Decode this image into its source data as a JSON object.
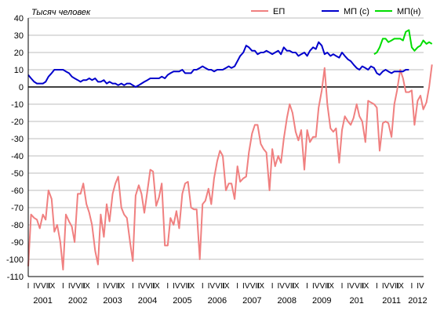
{
  "chart_data": {
    "type": "line",
    "units_label": "Тысяч человек",
    "ylim": [
      -110,
      40
    ],
    "y_ticks": [
      40,
      30,
      20,
      10,
      0,
      -10,
      -20,
      -30,
      -40,
      -50,
      -60,
      -70,
      -80,
      -90,
      -100,
      -110
    ],
    "x_range": [
      2001.0,
      2012.34
    ],
    "quarter_labels": [
      "I",
      "IV",
      "VII",
      "IX"
    ],
    "year_labels": [
      "2001",
      "2002",
      "2003",
      "2004",
      "2005",
      "2006",
      "2007",
      "2008",
      "2009",
      "201",
      "2011",
      "2012"
    ],
    "last_year_quarter_labels": [
      "I",
      "IV",
      "VII"
    ],
    "grid": true,
    "legend_position": "top-right",
    "series": [
      {
        "name": "ЕП",
        "color": "#f08080",
        "points": [
          [
            2001.0,
            -104
          ],
          [
            2001.08,
            -74
          ],
          [
            2001.17,
            -76
          ],
          [
            2001.25,
            -77
          ],
          [
            2001.33,
            -82
          ],
          [
            2001.42,
            -74
          ],
          [
            2001.5,
            -77
          ],
          [
            2001.58,
            -60
          ],
          [
            2001.67,
            -65
          ],
          [
            2001.75,
            -84
          ],
          [
            2001.83,
            -80
          ],
          [
            2001.92,
            -90
          ],
          [
            2002.0,
            -106
          ],
          [
            2002.08,
            -74
          ],
          [
            2002.17,
            -78
          ],
          [
            2002.25,
            -81
          ],
          [
            2002.33,
            -90
          ],
          [
            2002.42,
            -62
          ],
          [
            2002.5,
            -62
          ],
          [
            2002.58,
            -56
          ],
          [
            2002.67,
            -68
          ],
          [
            2002.75,
            -73
          ],
          [
            2002.83,
            -80
          ],
          [
            2002.92,
            -95
          ],
          [
            2003.0,
            -103
          ],
          [
            2003.08,
            -74
          ],
          [
            2003.17,
            -87
          ],
          [
            2003.25,
            -68
          ],
          [
            2003.33,
            -78
          ],
          [
            2003.42,
            -62
          ],
          [
            2003.5,
            -56
          ],
          [
            2003.58,
            -52
          ],
          [
            2003.67,
            -70
          ],
          [
            2003.75,
            -74
          ],
          [
            2003.83,
            -76
          ],
          [
            2003.92,
            -90
          ],
          [
            2004.0,
            -101
          ],
          [
            2004.08,
            -63
          ],
          [
            2004.17,
            -57
          ],
          [
            2004.25,
            -62
          ],
          [
            2004.33,
            -73
          ],
          [
            2004.42,
            -60
          ],
          [
            2004.5,
            -48
          ],
          [
            2004.58,
            -49
          ],
          [
            2004.67,
            -69
          ],
          [
            2004.75,
            -64
          ],
          [
            2004.83,
            -56
          ],
          [
            2004.92,
            -92
          ],
          [
            2005.0,
            -92
          ],
          [
            2005.08,
            -76
          ],
          [
            2005.17,
            -80
          ],
          [
            2005.25,
            -72
          ],
          [
            2005.33,
            -82
          ],
          [
            2005.42,
            -62
          ],
          [
            2005.5,
            -56
          ],
          [
            2005.58,
            -55
          ],
          [
            2005.67,
            -70
          ],
          [
            2005.75,
            -71
          ],
          [
            2005.83,
            -71
          ],
          [
            2005.92,
            -100
          ],
          [
            2006.0,
            -68
          ],
          [
            2006.08,
            -66
          ],
          [
            2006.17,
            -59
          ],
          [
            2006.25,
            -68
          ],
          [
            2006.33,
            -53
          ],
          [
            2006.42,
            -43
          ],
          [
            2006.5,
            -37
          ],
          [
            2006.58,
            -40
          ],
          [
            2006.67,
            -60
          ],
          [
            2006.75,
            -56
          ],
          [
            2006.83,
            -56
          ],
          [
            2006.92,
            -65
          ],
          [
            2007.0,
            -46
          ],
          [
            2007.08,
            -55
          ],
          [
            2007.17,
            -53
          ],
          [
            2007.25,
            -52
          ],
          [
            2007.33,
            -38
          ],
          [
            2007.42,
            -27
          ],
          [
            2007.5,
            -22
          ],
          [
            2007.58,
            -22
          ],
          [
            2007.67,
            -33
          ],
          [
            2007.75,
            -36
          ],
          [
            2007.83,
            -38
          ],
          [
            2007.92,
            -60
          ],
          [
            2008.0,
            -36
          ],
          [
            2008.08,
            -46
          ],
          [
            2008.17,
            -40
          ],
          [
            2008.25,
            -44
          ],
          [
            2008.33,
            -30
          ],
          [
            2008.42,
            -18
          ],
          [
            2008.5,
            -10
          ],
          [
            2008.58,
            -15
          ],
          [
            2008.67,
            -26
          ],
          [
            2008.75,
            -31
          ],
          [
            2008.83,
            -25
          ],
          [
            2008.92,
            -48
          ],
          [
            2009.0,
            -25
          ],
          [
            2009.08,
            -32
          ],
          [
            2009.17,
            -29
          ],
          [
            2009.25,
            -29
          ],
          [
            2009.33,
            -12
          ],
          [
            2009.42,
            -2
          ],
          [
            2009.5,
            11
          ],
          [
            2009.58,
            -10
          ],
          [
            2009.67,
            -24
          ],
          [
            2009.75,
            -26
          ],
          [
            2009.83,
            -24
          ],
          [
            2009.92,
            -44
          ],
          [
            2010.0,
            -25
          ],
          [
            2010.08,
            -17
          ],
          [
            2010.17,
            -20
          ],
          [
            2010.25,
            -22
          ],
          [
            2010.33,
            -18
          ],
          [
            2010.42,
            -10
          ],
          [
            2010.5,
            -17
          ],
          [
            2010.58,
            -20
          ],
          [
            2010.67,
            -32
          ],
          [
            2010.75,
            -8
          ],
          [
            2010.83,
            -9
          ],
          [
            2010.92,
            -10
          ],
          [
            2011.0,
            -12
          ],
          [
            2011.08,
            -37
          ],
          [
            2011.17,
            -21
          ],
          [
            2011.25,
            -20
          ],
          [
            2011.33,
            -21
          ],
          [
            2011.42,
            -29
          ],
          [
            2011.5,
            -10
          ],
          [
            2011.58,
            -2
          ],
          [
            2011.67,
            10
          ],
          [
            2011.75,
            5
          ],
          [
            2011.83,
            -3
          ],
          [
            2011.92,
            -3
          ],
          [
            2012.0,
            -2
          ],
          [
            2012.08,
            -22
          ],
          [
            2012.17,
            -8
          ],
          [
            2012.25,
            -5
          ],
          [
            2012.33,
            -13
          ],
          [
            2012.42,
            -9
          ],
          [
            2012.5,
            0
          ],
          [
            2012.58,
            13
          ]
        ]
      },
      {
        "name": "МП (с)",
        "color": "#0000cc",
        "points": [
          [
            2001.0,
            7
          ],
          [
            2001.08,
            5
          ],
          [
            2001.17,
            3
          ],
          [
            2001.25,
            2
          ],
          [
            2001.33,
            2
          ],
          [
            2001.42,
            2
          ],
          [
            2001.5,
            3
          ],
          [
            2001.58,
            6
          ],
          [
            2001.67,
            8
          ],
          [
            2001.75,
            10
          ],
          [
            2001.83,
            10
          ],
          [
            2001.92,
            10
          ],
          [
            2002.0,
            10
          ],
          [
            2002.08,
            9
          ],
          [
            2002.17,
            8
          ],
          [
            2002.25,
            6
          ],
          [
            2002.33,
            5
          ],
          [
            2002.42,
            4
          ],
          [
            2002.5,
            3
          ],
          [
            2002.58,
            4
          ],
          [
            2002.67,
            4
          ],
          [
            2002.75,
            5
          ],
          [
            2002.83,
            4
          ],
          [
            2002.92,
            5
          ],
          [
            2003.0,
            3
          ],
          [
            2003.08,
            3
          ],
          [
            2003.17,
            4
          ],
          [
            2003.25,
            2
          ],
          [
            2003.33,
            3
          ],
          [
            2003.42,
            2
          ],
          [
            2003.5,
            2
          ],
          [
            2003.58,
            1
          ],
          [
            2003.67,
            2
          ],
          [
            2003.75,
            1
          ],
          [
            2003.83,
            2
          ],
          [
            2003.92,
            2
          ],
          [
            2004.0,
            1
          ],
          [
            2004.08,
            0
          ],
          [
            2004.17,
            1
          ],
          [
            2004.25,
            2
          ],
          [
            2004.33,
            3
          ],
          [
            2004.42,
            4
          ],
          [
            2004.5,
            5
          ],
          [
            2004.58,
            5
          ],
          [
            2004.67,
            5
          ],
          [
            2004.75,
            5
          ],
          [
            2004.83,
            6
          ],
          [
            2004.92,
            5
          ],
          [
            2005.0,
            7
          ],
          [
            2005.08,
            8
          ],
          [
            2005.17,
            9
          ],
          [
            2005.25,
            9
          ],
          [
            2005.33,
            9
          ],
          [
            2005.42,
            10
          ],
          [
            2005.5,
            8
          ],
          [
            2005.58,
            8
          ],
          [
            2005.67,
            8
          ],
          [
            2005.75,
            10
          ],
          [
            2005.83,
            10
          ],
          [
            2005.92,
            11
          ],
          [
            2006.0,
            12
          ],
          [
            2006.08,
            11
          ],
          [
            2006.17,
            10
          ],
          [
            2006.25,
            10
          ],
          [
            2006.33,
            9
          ],
          [
            2006.42,
            10
          ],
          [
            2006.5,
            10
          ],
          [
            2006.58,
            10
          ],
          [
            2006.67,
            11
          ],
          [
            2006.75,
            12
          ],
          [
            2006.83,
            11
          ],
          [
            2006.92,
            12
          ],
          [
            2007.0,
            15
          ],
          [
            2007.08,
            18
          ],
          [
            2007.17,
            20
          ],
          [
            2007.25,
            24
          ],
          [
            2007.33,
            23
          ],
          [
            2007.42,
            21
          ],
          [
            2007.5,
            21
          ],
          [
            2007.58,
            19
          ],
          [
            2007.67,
            20
          ],
          [
            2007.75,
            20
          ],
          [
            2007.83,
            21
          ],
          [
            2007.92,
            20
          ],
          [
            2008.0,
            19
          ],
          [
            2008.08,
            20
          ],
          [
            2008.17,
            21
          ],
          [
            2008.25,
            19
          ],
          [
            2008.33,
            23
          ],
          [
            2008.42,
            21
          ],
          [
            2008.5,
            21
          ],
          [
            2008.58,
            20
          ],
          [
            2008.67,
            20
          ],
          [
            2008.75,
            18
          ],
          [
            2008.83,
            19
          ],
          [
            2008.92,
            20
          ],
          [
            2009.0,
            18
          ],
          [
            2009.08,
            21
          ],
          [
            2009.17,
            23
          ],
          [
            2009.25,
            22
          ],
          [
            2009.33,
            26
          ],
          [
            2009.42,
            24
          ],
          [
            2009.5,
            19
          ],
          [
            2009.58,
            20
          ],
          [
            2009.67,
            18
          ],
          [
            2009.75,
            19
          ],
          [
            2009.83,
            18
          ],
          [
            2009.92,
            17
          ],
          [
            2010.0,
            20
          ],
          [
            2010.08,
            18
          ],
          [
            2010.17,
            16
          ],
          [
            2010.25,
            15
          ],
          [
            2010.33,
            13
          ],
          [
            2010.42,
            11
          ],
          [
            2010.5,
            10
          ],
          [
            2010.58,
            12
          ],
          [
            2010.67,
            11
          ],
          [
            2010.75,
            10
          ],
          [
            2010.83,
            12
          ],
          [
            2010.92,
            11
          ],
          [
            2011.0,
            8
          ],
          [
            2011.08,
            7
          ],
          [
            2011.17,
            9
          ],
          [
            2011.25,
            10
          ],
          [
            2011.33,
            9
          ],
          [
            2011.42,
            8
          ],
          [
            2011.5,
            9
          ],
          [
            2011.58,
            9
          ],
          [
            2011.67,
            9
          ],
          [
            2011.75,
            9
          ],
          [
            2011.83,
            10
          ],
          [
            2011.92,
            10
          ]
        ]
      },
      {
        "name": "МП(н)",
        "color": "#00dd00",
        "points": [
          [
            2010.92,
            19
          ],
          [
            2011.0,
            20
          ],
          [
            2011.08,
            23
          ],
          [
            2011.17,
            28
          ],
          [
            2011.25,
            28
          ],
          [
            2011.33,
            26
          ],
          [
            2011.42,
            27
          ],
          [
            2011.5,
            28
          ],
          [
            2011.58,
            28
          ],
          [
            2011.67,
            28
          ],
          [
            2011.75,
            27
          ],
          [
            2011.83,
            32
          ],
          [
            2011.92,
            33
          ],
          [
            2012.0,
            23
          ],
          [
            2012.08,
            21
          ],
          [
            2012.17,
            23
          ],
          [
            2012.25,
            24
          ],
          [
            2012.33,
            27
          ],
          [
            2012.42,
            25
          ],
          [
            2012.5,
            26
          ],
          [
            2012.58,
            25
          ]
        ]
      }
    ]
  }
}
